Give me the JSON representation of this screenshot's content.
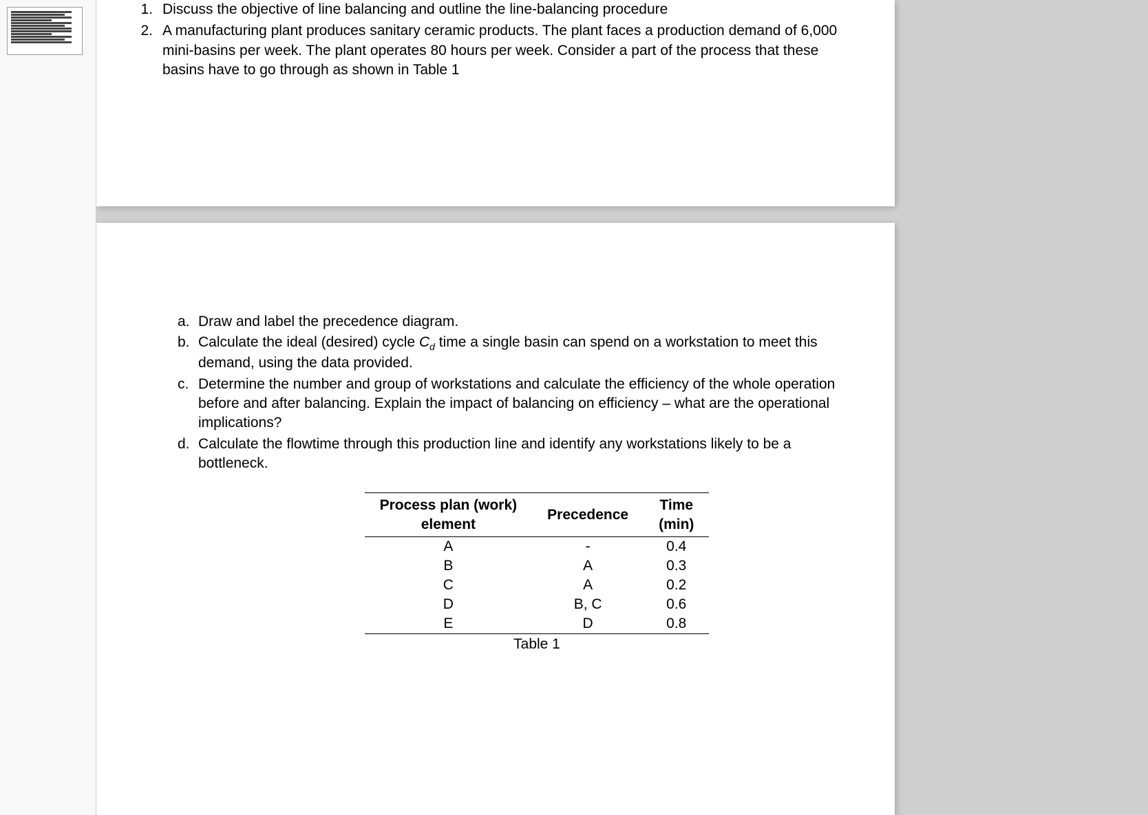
{
  "questions": [
    {
      "number": "1.",
      "text": "Discuss the objective of line balancing and outline the line-balancing procedure"
    },
    {
      "number": "2.",
      "text": "A manufacturing plant produces sanitary ceramic products. The plant faces a production demand of 6,000 mini-basins per week. The plant operates 80 hours per week. Consider a part of the process that these basins have to go through as shown in Table 1"
    }
  ],
  "subparts": [
    {
      "letter": "a.",
      "text": "Draw and label the precedence diagram."
    },
    {
      "letter": "b.",
      "text_pre": "Calculate the ideal (desired) cycle ",
      "symbol": "C",
      "subscript": "d",
      "text_post": " time a single basin can spend on a workstation to meet this demand, using the data provided."
    },
    {
      "letter": "c.",
      "text": "Determine the number and group of workstations and calculate the efficiency of the whole operation before and after balancing. Explain the impact of balancing on efficiency – what are the operational implications?"
    },
    {
      "letter": "d.",
      "text": "Calculate the flowtime through this production line and identify any workstations likely to be a bottleneck."
    }
  ],
  "table": {
    "columns": [
      "Process plan (work) element",
      "Precedence",
      "Time (min)"
    ],
    "col1_line1": "Process plan (work)",
    "col1_line2": "element",
    "col2": "Precedence",
    "col3_line1": "Time",
    "col3_line2": "(min)",
    "rows": [
      [
        "A",
        "-",
        "0.4"
      ],
      [
        "B",
        "A",
        "0.3"
      ],
      [
        "C",
        "A",
        "0.2"
      ],
      [
        "D",
        "B, C",
        "0.6"
      ],
      [
        "E",
        "D",
        "0.8"
      ]
    ],
    "caption": "Table 1"
  },
  "styling": {
    "body_fontsize": 21,
    "text_color": "#000000",
    "background_page": "#ffffff",
    "background_outer": "#cfcfcf",
    "table_border_color": "#000000",
    "font_family": "Arial"
  }
}
